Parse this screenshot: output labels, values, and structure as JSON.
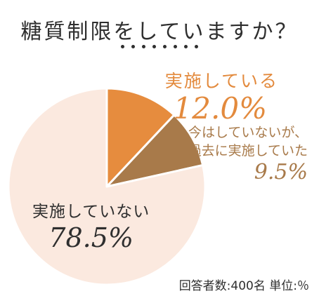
{
  "title": "糖質制限をしていますか？",
  "footnote": "回答者数:400名 単位:％",
  "chart_data": {
    "type": "pie",
    "title": "糖質制限をしていますか？",
    "unit": "%",
    "slices": [
      {
        "label": "実施している",
        "value": 12.0,
        "display": "12.0%",
        "color": "#e68c3e"
      },
      {
        "label": "今はしていないが、過去に実施していた",
        "label_lines": [
          "今はしていないが、",
          "過去に実施していた"
        ],
        "value": 9.5,
        "display": "9.5%",
        "color": "#a87a4a"
      },
      {
        "label": "実施していない",
        "value": 78.5,
        "display": "78.5%",
        "color": "#fbe9df"
      }
    ]
  }
}
